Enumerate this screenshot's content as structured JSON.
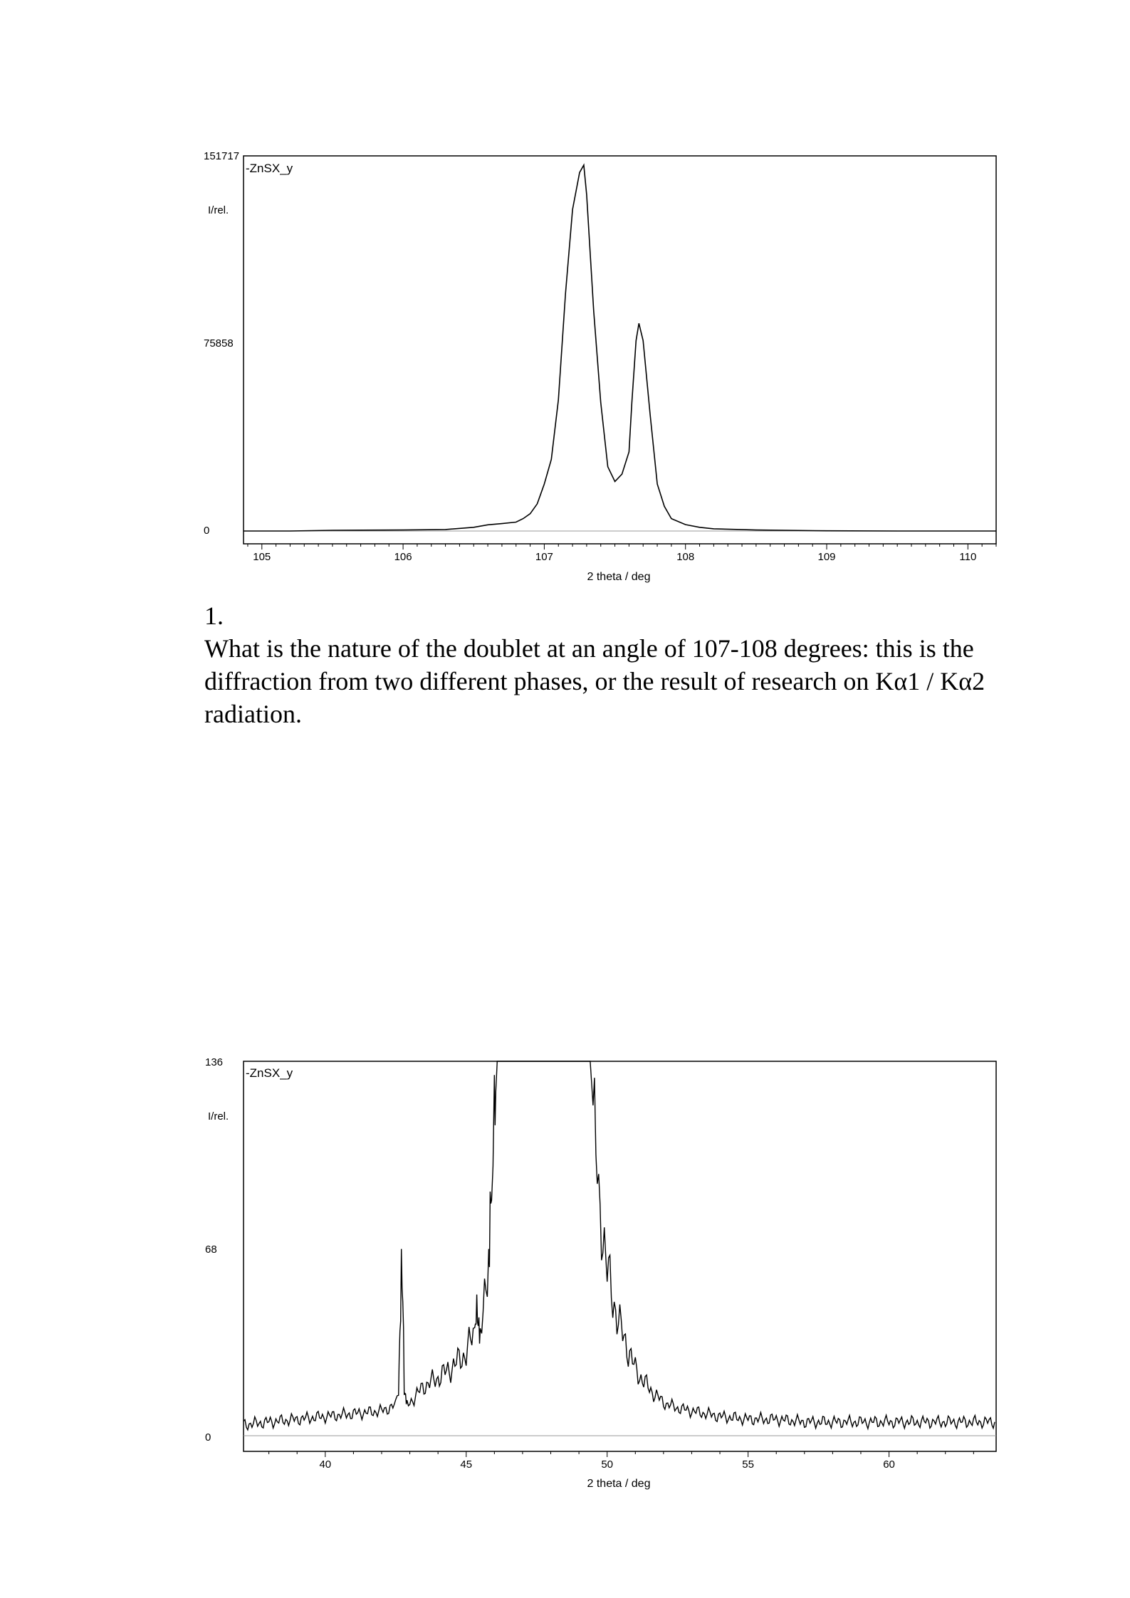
{
  "question": {
    "number": "1.",
    "text": "What is the nature of the doublet at an angle of 107-108 degrees: this is the diffraction from two different phases, or the result of research on Kα1 / Kα2 radiation."
  },
  "chart_data": [
    {
      "type": "line",
      "legend": "ZnSX_y",
      "ylabel": "I/rel.",
      "xlabel": "2 theta / deg",
      "xlim": [
        104.87,
        110.2
      ],
      "ylim": [
        0,
        151717
      ],
      "yticks": [
        "151717",
        "75858",
        "0"
      ],
      "xticks": [
        "105",
        "106",
        "107",
        "108",
        "109",
        "110"
      ],
      "series": [
        {
          "x": [
            104.87,
            105.2,
            105.5,
            106.0,
            106.3,
            106.5,
            106.6,
            106.7,
            106.8,
            106.85,
            106.9,
            106.95,
            107.0,
            107.05,
            107.1,
            107.15,
            107.2,
            107.25,
            107.28,
            107.3,
            107.35,
            107.4,
            107.45,
            107.5,
            107.55,
            107.6,
            107.62,
            107.65,
            107.67,
            107.7,
            107.75,
            107.8,
            107.85,
            107.9,
            108.0,
            108.1,
            108.2,
            108.5,
            109.0,
            109.5,
            110.0,
            110.2
          ],
          "y": [
            0,
            0,
            300,
            400,
            600,
            1500,
            2500,
            3000,
            3600,
            5000,
            7000,
            11000,
            19000,
            29000,
            53000,
            96000,
            130000,
            145000,
            148000,
            136000,
            89000,
            52000,
            26000,
            20000,
            23000,
            32000,
            52000,
            77000,
            84000,
            77000,
            47000,
            19000,
            10000,
            5000,
            2600,
            1500,
            900,
            400,
            100,
            0,
            0,
            0
          ]
        }
      ]
    },
    {
      "type": "line",
      "legend": "ZnSX_y",
      "ylabel": "I/rel.",
      "xlabel": "2 theta / deg",
      "xlim": [
        37.1,
        63.8
      ],
      "ylim": [
        0,
        136
      ],
      "yticks": [
        "136",
        "68",
        "0"
      ],
      "xticks": [
        "40",
        "45",
        "50",
        "55",
        "60"
      ],
      "series": [
        {
          "x": [
            37.1,
            38.0,
            39.0,
            40.0,
            41.0,
            42.0,
            42.5,
            42.6,
            42.65,
            42.7,
            42.75,
            42.8,
            42.85,
            42.9,
            43.0,
            43.5,
            44.0,
            44.5,
            45.0,
            45.3,
            45.35,
            45.4,
            45.45,
            45.5,
            45.6,
            45.7,
            45.8,
            45.85,
            45.9,
            46.0,
            46.05,
            46.1,
            46.2,
            49.4,
            49.5,
            49.6,
            49.7,
            49.8,
            50.0,
            50.2,
            50.5,
            50.8,
            51.0,
            51.5,
            52.0,
            52.5,
            53.0,
            54.0,
            55.0,
            56.0,
            57.0,
            58.0,
            59.0,
            60.0,
            61.0,
            62.0,
            63.0,
            63.8
          ],
          "y": [
            4,
            5,
            6,
            7,
            8,
            9,
            11,
            18,
            40,
            65,
            54,
            16,
            13,
            11,
            12,
            18,
            21,
            25,
            30,
            38,
            50,
            48,
            39,
            36,
            42,
            55,
            70,
            85,
            95,
            110,
            125,
            136,
            136,
            136,
            120,
            102,
            84,
            80,
            60,
            50,
            38,
            30,
            24,
            17,
            12,
            10,
            9,
            7,
            6,
            6,
            5,
            5,
            5,
            5,
            5,
            5,
            5,
            5
          ]
        }
      ]
    }
  ]
}
